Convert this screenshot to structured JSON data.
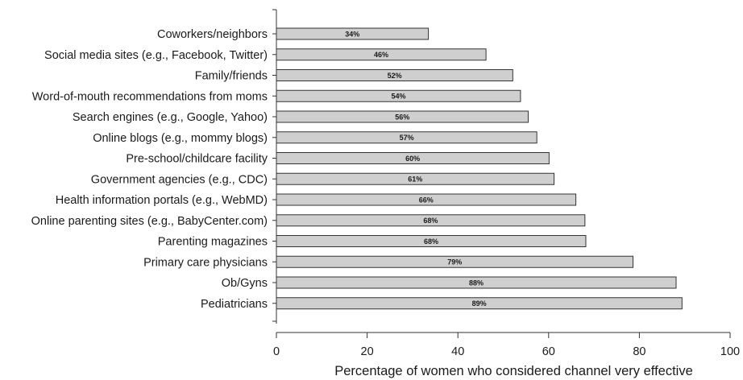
{
  "chart_data": {
    "type": "bar",
    "orientation": "horizontal",
    "title": "",
    "xlabel": "Percentage of women who considered channel very effective",
    "ylabel": "",
    "xlim": [
      0,
      100
    ],
    "xticks": [
      0,
      20,
      40,
      60,
      80,
      100
    ],
    "grid": false,
    "bar_color": "#cfcfcf",
    "bar_edge_color": "#333333",
    "categories": [
      "Coworkers/neighbors",
      "Social media sites (e.g., Facebook, Twitter)",
      "Family/friends",
      "Word-of-mouth recommendations from moms",
      "Search engines (e.g., Google, Yahoo)",
      "Online blogs (e.g., mommy blogs)",
      "Pre-school/childcare facility",
      "Government agencies (e.g., CDC)",
      "Health information portals (e.g., WebMD)",
      "Online parenting sites (e.g., BabyCenter.com)",
      "Parenting magazines",
      "Primary care physicians",
      "Ob/Gyns",
      "Pediatricians"
    ],
    "values": [
      33.5,
      46.2,
      52.1,
      53.8,
      55.5,
      57.4,
      60.1,
      61.2,
      66.0,
      68.0,
      68.2,
      78.6,
      88.1,
      89.4
    ],
    "data_labels": [
      "34%",
      "46%",
      "52%",
      "54%",
      "56%",
      "57%",
      "60%",
      "61%",
      "66%",
      "68%",
      "68%",
      "79%",
      "88%",
      "89%"
    ]
  }
}
